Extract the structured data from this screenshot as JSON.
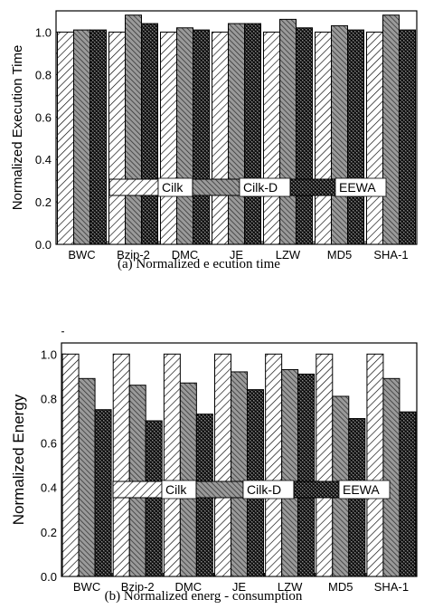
{
  "chart_data": [
    {
      "type": "bar",
      "panel": "a",
      "caption": "(a) Normalized e ecution time",
      "ylabel": "Normalized Execution Time",
      "xlabel": "",
      "ylim": [
        0,
        1.1
      ],
      "yticks": [
        "0.0",
        "0.2",
        "0.4",
        "0.6",
        "0.8",
        "1.0"
      ],
      "categories": [
        "BWC",
        "Bzip-2",
        "DMC",
        "JE",
        "LZW",
        "MD5",
        "SHA-1"
      ],
      "legend_position": "center",
      "series": [
        {
          "name": "Cilk",
          "pattern": "hatch-diagonal",
          "values": [
            1.0,
            1.0,
            1.0,
            1.0,
            1.0,
            1.0,
            1.0
          ]
        },
        {
          "name": "Cilk-D",
          "pattern": "hatch-cross-dense",
          "values": [
            1.01,
            1.08,
            1.02,
            1.04,
            1.06,
            1.03,
            1.08
          ]
        },
        {
          "name": "EEWA",
          "pattern": "checker-dark",
          "values": [
            1.01,
            1.04,
            1.01,
            1.04,
            1.02,
            1.01,
            1.01
          ]
        }
      ]
    },
    {
      "type": "bar",
      "panel": "b",
      "caption": "(b) Normalized energ - consumption",
      "ylabel": "Normalized Energy",
      "xlabel": "",
      "ylim": [
        0,
        1.05
      ],
      "yticks": [
        "0.0",
        "0.2",
        "0.4",
        "0.6",
        "0.8",
        "1.0"
      ],
      "categories": [
        "BWC",
        "Bzip-2",
        "DMC",
        "JE",
        "LZW",
        "MD5",
        "SHA-1"
      ],
      "legend_position": "center",
      "series": [
        {
          "name": "Cilk",
          "pattern": "hatch-diagonal",
          "values": [
            1.0,
            1.0,
            1.0,
            1.0,
            1.0,
            1.0,
            1.0
          ]
        },
        {
          "name": "Cilk-D",
          "pattern": "hatch-cross-dense",
          "values": [
            0.89,
            0.86,
            0.87,
            0.92,
            0.93,
            0.81,
            0.89
          ]
        },
        {
          "name": "EEWA",
          "pattern": "checker-dark",
          "values": [
            0.75,
            0.7,
            0.73,
            0.84,
            0.91,
            0.71,
            0.74
          ]
        }
      ]
    }
  ]
}
